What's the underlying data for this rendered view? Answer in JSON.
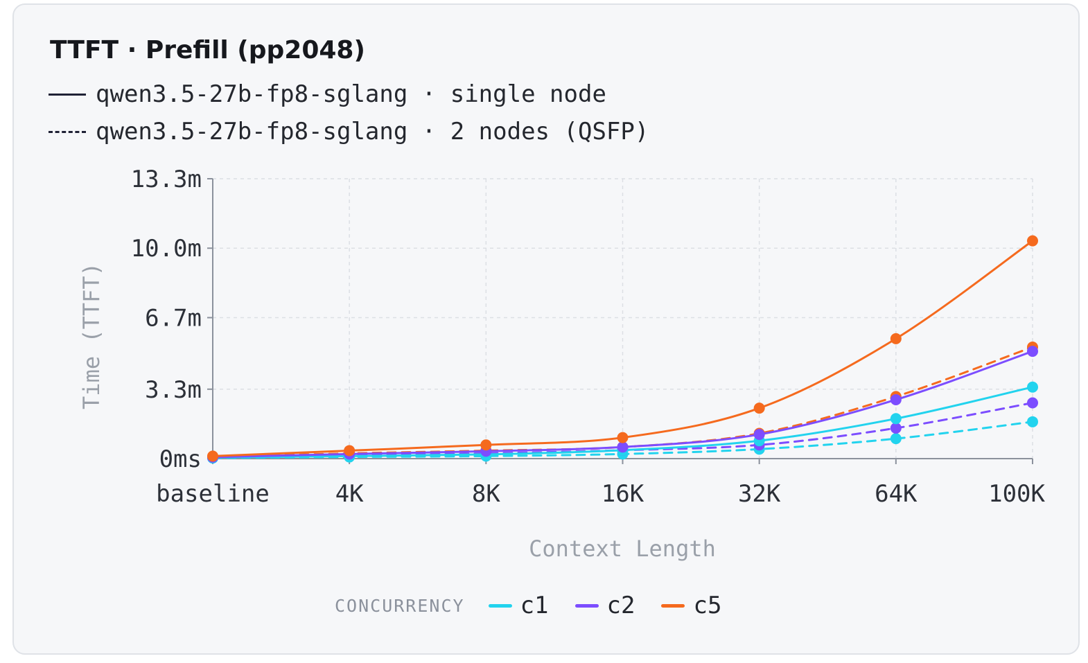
{
  "title": "TTFT · Prefill (pp2048)",
  "variants": [
    {
      "style": "solid",
      "label": "qwen3.5-27b-fp8-sglang · single node"
    },
    {
      "style": "dashed",
      "label": "qwen3.5-27b-fp8-sglang · 2 nodes (QSFP)"
    }
  ],
  "legend": {
    "caption": "CONCURRENCY",
    "items": [
      {
        "label": "c1",
        "color": "#22d3ee"
      },
      {
        "label": "c2",
        "color": "#7c4dff"
      },
      {
        "label": "c5",
        "color": "#f56a1e"
      }
    ]
  },
  "chart_data": {
    "type": "line",
    "title": "TTFT · Prefill (pp2048)",
    "xlabel": "Context Length",
    "ylabel": "Time (TTFT)",
    "y_unit": "minutes",
    "categories": [
      "baseline",
      "4K",
      "8K",
      "16K",
      "32K",
      "64K",
      "100K"
    ],
    "yticks": [
      0,
      3.3,
      6.7,
      10.0,
      13.3
    ],
    "ytick_labels": [
      "0ms",
      "3.3m",
      "6.7m",
      "10.0m",
      "13.3m"
    ],
    "ylim": [
      0,
      13.3
    ],
    "grid": true,
    "legend_position": "bottom",
    "series": [
      {
        "name": "c1",
        "variant": "single node",
        "color": "#22d3ee",
        "dashed": false,
        "values": [
          0.05,
          0.12,
          0.2,
          0.4,
          0.85,
          1.9,
          3.4
        ]
      },
      {
        "name": "c2",
        "variant": "single node",
        "color": "#7c4dff",
        "dashed": false,
        "values": [
          0.07,
          0.22,
          0.35,
          0.55,
          1.15,
          2.8,
          5.1
        ]
      },
      {
        "name": "c5",
        "variant": "single node",
        "color": "#f56a1e",
        "dashed": false,
        "values": [
          0.12,
          0.38,
          0.65,
          1.0,
          2.4,
          5.7,
          10.35
        ]
      },
      {
        "name": "c1",
        "variant": "2 nodes (QSFP)",
        "color": "#22d3ee",
        "dashed": true,
        "values": [
          0.03,
          0.08,
          0.12,
          0.22,
          0.45,
          0.95,
          1.75
        ]
      },
      {
        "name": "c2",
        "variant": "2 nodes (QSFP)",
        "color": "#7c4dff",
        "dashed": true,
        "values": [
          0.05,
          0.15,
          0.25,
          0.4,
          0.65,
          1.45,
          2.65
        ]
      },
      {
        "name": "c5",
        "variant": "2 nodes (QSFP)",
        "color": "#f56a1e",
        "dashed": true,
        "values": [
          0.08,
          0.25,
          0.38,
          0.55,
          1.2,
          2.95,
          5.3
        ]
      }
    ]
  }
}
